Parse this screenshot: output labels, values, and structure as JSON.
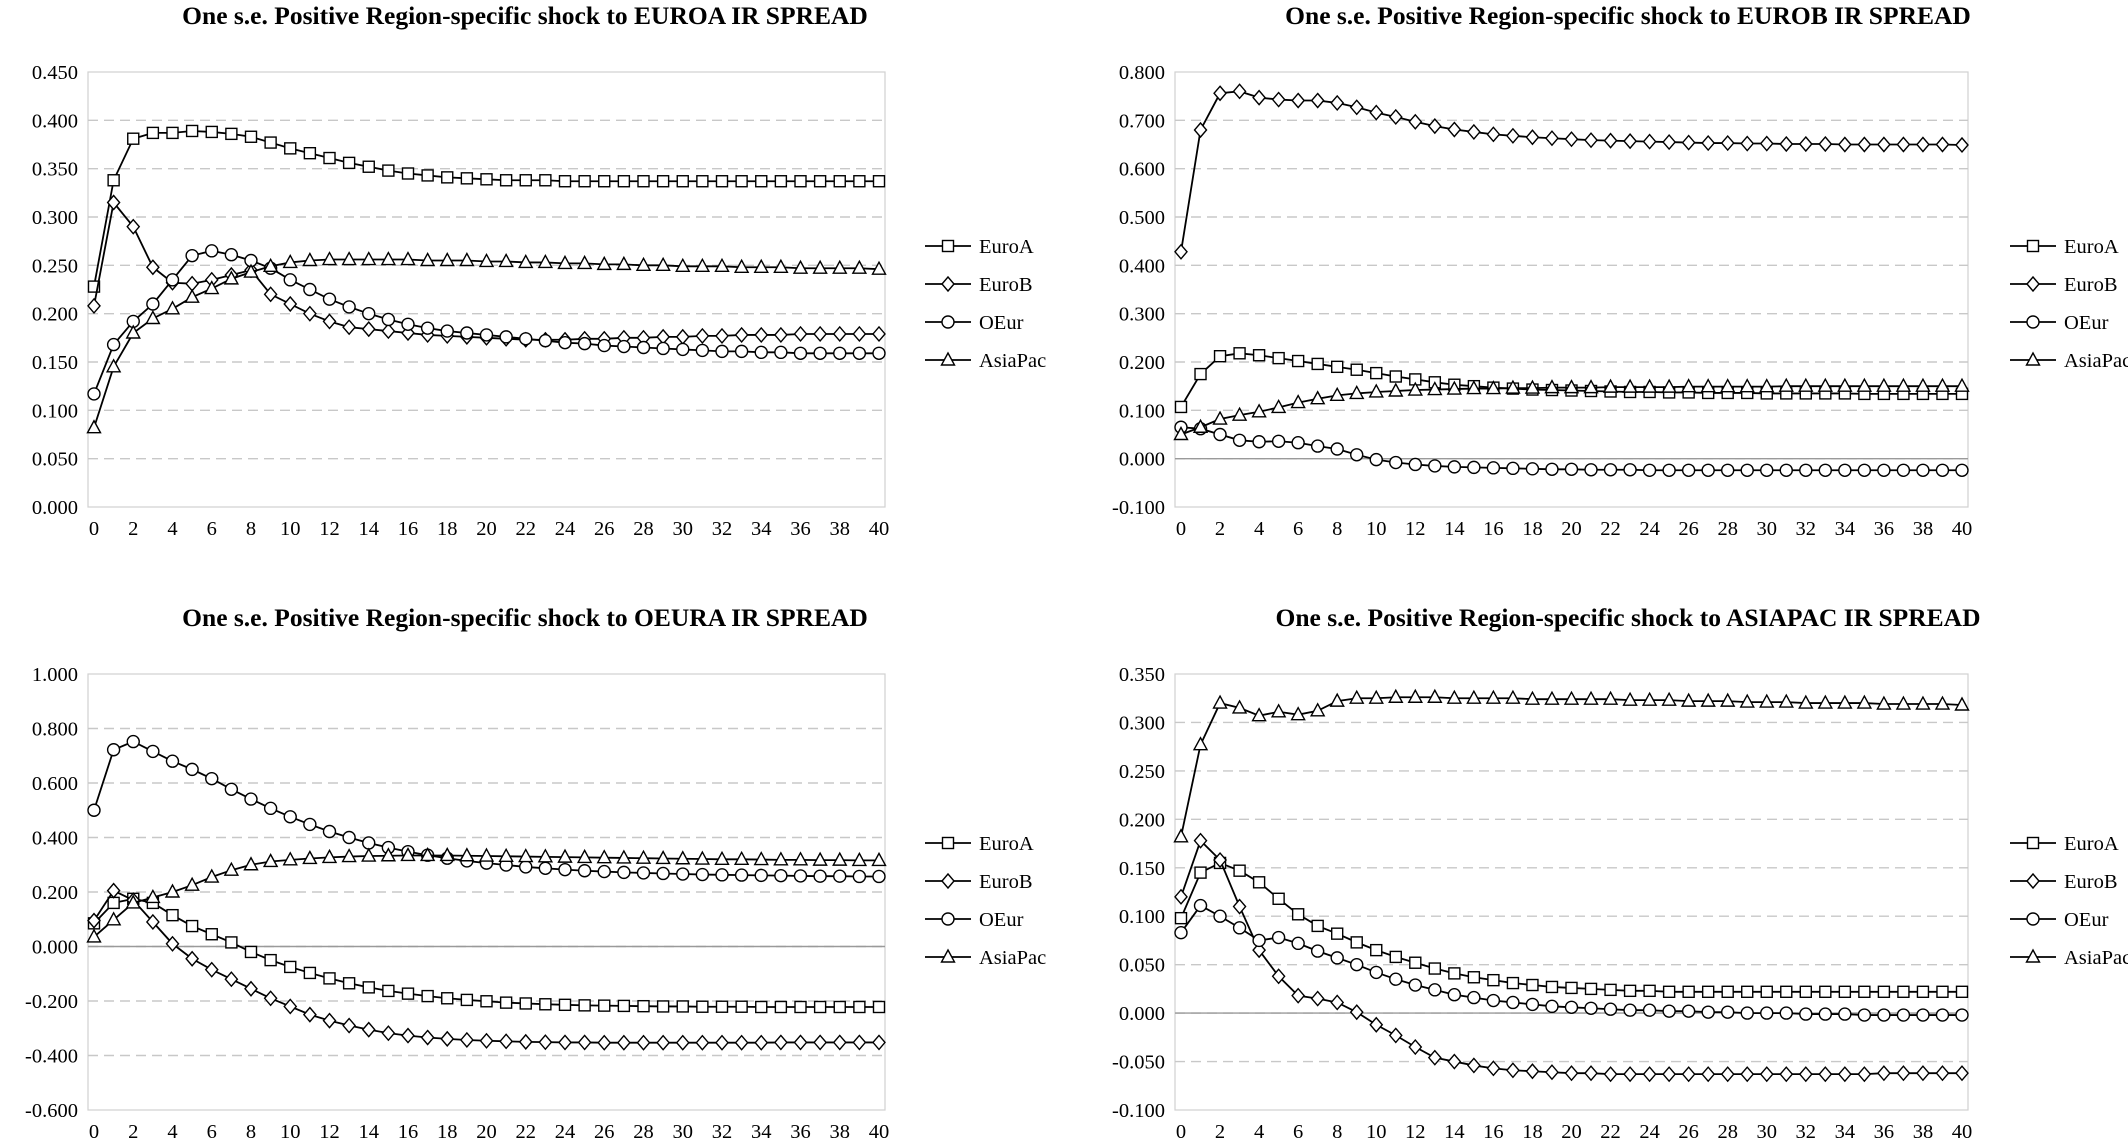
{
  "chart_data": [
    {
      "type": "line",
      "title": "One s.e. Positive Region-specific shock to EUROA IR SPREAD",
      "ylim": [
        0,
        0.45
      ],
      "ystep": 0.05,
      "ydecimals": 3,
      "xlim": [
        0,
        40
      ],
      "xtick_labels": [
        "0",
        "2",
        "4",
        "6",
        "8",
        "10",
        "12",
        "14",
        "16",
        "18",
        "20",
        "22",
        "24",
        "26",
        "28",
        "30",
        "32",
        "34",
        "36",
        "38",
        "40"
      ],
      "grid": true,
      "legend_position": "right",
      "series": [
        {
          "name": "EuroA",
          "marker": "square",
          "values": [
            0.228,
            0.338,
            0.381,
            0.387,
            0.387,
            0.389,
            0.388,
            0.386,
            0.383,
            0.377,
            0.371,
            0.366,
            0.361,
            0.356,
            0.352,
            0.348,
            0.345,
            0.343,
            0.341,
            0.34,
            0.339,
            0.338,
            0.338,
            0.338,
            0.337,
            0.337,
            0.337,
            0.337,
            0.337,
            0.337,
            0.337,
            0.337,
            0.337,
            0.337,
            0.337,
            0.337,
            0.337,
            0.337,
            0.337,
            0.337,
            0.337
          ]
        },
        {
          "name": "EuroB",
          "marker": "diamond",
          "values": [
            0.208,
            0.315,
            0.29,
            0.248,
            0.232,
            0.231,
            0.235,
            0.24,
            0.245,
            0.22,
            0.21,
            0.2,
            0.192,
            0.186,
            0.184,
            0.182,
            0.18,
            0.178,
            0.177,
            0.176,
            0.175,
            0.174,
            0.173,
            0.173,
            0.173,
            0.174,
            0.174,
            0.175,
            0.175,
            0.176,
            0.176,
            0.177,
            0.177,
            0.178,
            0.178,
            0.178,
            0.179,
            0.179,
            0.179,
            0.179,
            0.179
          ]
        },
        {
          "name": "OEur",
          "marker": "circle",
          "values": [
            0.117,
            0.168,
            0.192,
            0.21,
            0.235,
            0.26,
            0.265,
            0.261,
            0.255,
            0.247,
            0.235,
            0.225,
            0.215,
            0.207,
            0.2,
            0.194,
            0.189,
            0.185,
            0.182,
            0.18,
            0.178,
            0.176,
            0.174,
            0.172,
            0.17,
            0.169,
            0.167,
            0.166,
            0.165,
            0.164,
            0.163,
            0.162,
            0.161,
            0.161,
            0.16,
            0.16,
            0.159,
            0.159,
            0.159,
            0.159,
            0.159
          ]
        },
        {
          "name": "AsiaPac",
          "marker": "triangle",
          "values": [
            0.082,
            0.145,
            0.18,
            0.195,
            0.205,
            0.217,
            0.226,
            0.236,
            0.243,
            0.249,
            0.253,
            0.255,
            0.256,
            0.256,
            0.256,
            0.256,
            0.256,
            0.255,
            0.255,
            0.255,
            0.254,
            0.254,
            0.253,
            0.253,
            0.252,
            0.252,
            0.251,
            0.251,
            0.25,
            0.25,
            0.249,
            0.249,
            0.249,
            0.248,
            0.248,
            0.248,
            0.247,
            0.247,
            0.247,
            0.247,
            0.246
          ]
        }
      ]
    },
    {
      "type": "line",
      "title": "One s.e. Positive Region-specific shock to EUROB IR SPREAD",
      "ylim": [
        -0.1,
        0.8
      ],
      "ystep": 0.1,
      "ydecimals": 3,
      "xlim": [
        0,
        40
      ],
      "xtick_labels": [
        "0",
        "2",
        "4",
        "6",
        "8",
        "10",
        "12",
        "14",
        "16",
        "18",
        "20",
        "22",
        "24",
        "26",
        "28",
        "30",
        "32",
        "34",
        "36",
        "38",
        "40"
      ],
      "grid": true,
      "legend_position": "right",
      "series": [
        {
          "name": "EuroA",
          "marker": "square",
          "values": [
            0.107,
            0.175,
            0.212,
            0.218,
            0.214,
            0.208,
            0.202,
            0.196,
            0.19,
            0.184,
            0.177,
            0.17,
            0.164,
            0.158,
            0.153,
            0.15,
            0.147,
            0.145,
            0.143,
            0.142,
            0.141,
            0.14,
            0.139,
            0.138,
            0.138,
            0.137,
            0.137,
            0.136,
            0.136,
            0.136,
            0.135,
            0.135,
            0.135,
            0.135,
            0.135,
            0.134,
            0.134,
            0.134,
            0.134,
            0.134,
            0.134
          ]
        },
        {
          "name": "EuroB",
          "marker": "diamond",
          "values": [
            0.428,
            0.68,
            0.756,
            0.76,
            0.747,
            0.743,
            0.741,
            0.741,
            0.736,
            0.727,
            0.716,
            0.707,
            0.697,
            0.688,
            0.681,
            0.676,
            0.671,
            0.668,
            0.665,
            0.663,
            0.661,
            0.659,
            0.658,
            0.657,
            0.656,
            0.655,
            0.654,
            0.653,
            0.653,
            0.652,
            0.652,
            0.651,
            0.651,
            0.651,
            0.65,
            0.65,
            0.65,
            0.65,
            0.65,
            0.65,
            0.649
          ]
        },
        {
          "name": "OEur",
          "marker": "circle",
          "values": [
            0.065,
            0.062,
            0.05,
            0.038,
            0.035,
            0.036,
            0.033,
            0.026,
            0.02,
            0.008,
            -0.002,
            -0.008,
            -0.012,
            -0.015,
            -0.017,
            -0.018,
            -0.019,
            -0.02,
            -0.021,
            -0.022,
            -0.022,
            -0.023,
            -0.023,
            -0.023,
            -0.024,
            -0.024,
            -0.024,
            -0.024,
            -0.024,
            -0.024,
            -0.024,
            -0.024,
            -0.024,
            -0.024,
            -0.024,
            -0.024,
            -0.024,
            -0.024,
            -0.024,
            -0.024,
            -0.024
          ]
        },
        {
          "name": "AsiaPac",
          "marker": "triangle",
          "values": [
            0.05,
            0.065,
            0.082,
            0.09,
            0.097,
            0.106,
            0.116,
            0.124,
            0.131,
            0.135,
            0.138,
            0.14,
            0.142,
            0.143,
            0.144,
            0.145,
            0.145,
            0.146,
            0.146,
            0.147,
            0.147,
            0.147,
            0.148,
            0.148,
            0.148,
            0.148,
            0.149,
            0.149,
            0.149,
            0.149,
            0.149,
            0.15,
            0.15,
            0.15,
            0.15,
            0.15,
            0.15,
            0.15,
            0.15,
            0.15,
            0.15
          ]
        }
      ]
    },
    {
      "type": "line",
      "title": "One s.e. Positive Region-specific shock to OEURA IR SPREAD",
      "ylim": [
        -0.6,
        1.0
      ],
      "ystep": 0.2,
      "ydecimals": 3,
      "xlim": [
        0,
        40
      ],
      "xtick_labels": [
        "0",
        "2",
        "4",
        "6",
        "8",
        "10",
        "12",
        "14",
        "16",
        "18",
        "20",
        "22",
        "24",
        "26",
        "28",
        "30",
        "32",
        "34",
        "36",
        "38",
        "40"
      ],
      "grid": true,
      "legend_position": "right",
      "series": [
        {
          "name": "EuroA",
          "marker": "square",
          "values": [
            0.085,
            0.16,
            0.175,
            0.16,
            0.115,
            0.075,
            0.045,
            0.015,
            -0.02,
            -0.05,
            -0.075,
            -0.097,
            -0.117,
            -0.135,
            -0.15,
            -0.163,
            -0.173,
            -0.182,
            -0.19,
            -0.196,
            -0.201,
            -0.206,
            -0.209,
            -0.212,
            -0.214,
            -0.216,
            -0.217,
            -0.218,
            -0.219,
            -0.22,
            -0.22,
            -0.221,
            -0.221,
            -0.221,
            -0.222,
            -0.222,
            -0.222,
            -0.222,
            -0.222,
            -0.222,
            -0.222
          ]
        },
        {
          "name": "EuroB",
          "marker": "diamond",
          "values": [
            0.095,
            0.205,
            0.17,
            0.09,
            0.01,
            -0.045,
            -0.085,
            -0.12,
            -0.155,
            -0.19,
            -0.22,
            -0.25,
            -0.272,
            -0.29,
            -0.305,
            -0.318,
            -0.327,
            -0.334,
            -0.339,
            -0.343,
            -0.346,
            -0.348,
            -0.35,
            -0.351,
            -0.352,
            -0.352,
            -0.353,
            -0.353,
            -0.353,
            -0.353,
            -0.353,
            -0.353,
            -0.353,
            -0.353,
            -0.353,
            -0.352,
            -0.352,
            -0.352,
            -0.352,
            -0.352,
            -0.352
          ]
        },
        {
          "name": "OEur",
          "marker": "circle",
          "values": [
            0.5,
            0.722,
            0.752,
            0.716,
            0.68,
            0.65,
            0.616,
            0.577,
            0.541,
            0.507,
            0.476,
            0.448,
            0.422,
            0.4,
            0.38,
            0.363,
            0.348,
            0.335,
            0.324,
            0.314,
            0.306,
            0.299,
            0.292,
            0.287,
            0.282,
            0.278,
            0.275,
            0.272,
            0.27,
            0.268,
            0.266,
            0.264,
            0.263,
            0.262,
            0.261,
            0.26,
            0.259,
            0.258,
            0.258,
            0.257,
            0.257
          ]
        },
        {
          "name": "AsiaPac",
          "marker": "triangle",
          "values": [
            0.035,
            0.098,
            0.16,
            0.18,
            0.2,
            0.225,
            0.255,
            0.28,
            0.3,
            0.312,
            0.318,
            0.323,
            0.327,
            0.33,
            0.332,
            0.333,
            0.334,
            0.334,
            0.334,
            0.333,
            0.332,
            0.331,
            0.33,
            0.329,
            0.328,
            0.327,
            0.326,
            0.325,
            0.324,
            0.323,
            0.322,
            0.321,
            0.32,
            0.32,
            0.319,
            0.318,
            0.318,
            0.317,
            0.317,
            0.316,
            0.316
          ]
        }
      ]
    },
    {
      "type": "line",
      "title": "One s.e. Positive Region-specific shock to ASIAPAC IR SPREAD",
      "ylim": [
        -0.1,
        0.35
      ],
      "ystep": 0.05,
      "ydecimals": 3,
      "xlim": [
        0,
        40
      ],
      "xtick_labels": [
        "0",
        "2",
        "4",
        "6",
        "8",
        "10",
        "12",
        "14",
        "16",
        "18",
        "20",
        "22",
        "24",
        "26",
        "28",
        "30",
        "32",
        "34",
        "36",
        "38",
        "40"
      ],
      "grid": true,
      "legend_position": "right",
      "series": [
        {
          "name": "EuroA",
          "marker": "square",
          "values": [
            0.098,
            0.145,
            0.155,
            0.147,
            0.135,
            0.118,
            0.102,
            0.09,
            0.082,
            0.073,
            0.065,
            0.058,
            0.052,
            0.046,
            0.041,
            0.037,
            0.034,
            0.031,
            0.029,
            0.027,
            0.026,
            0.025,
            0.024,
            0.023,
            0.023,
            0.022,
            0.022,
            0.022,
            0.022,
            0.022,
            0.022,
            0.022,
            0.022,
            0.022,
            0.022,
            0.022,
            0.022,
            0.022,
            0.022,
            0.022,
            0.022
          ]
        },
        {
          "name": "EuroB",
          "marker": "diamond",
          "values": [
            0.12,
            0.178,
            0.158,
            0.11,
            0.065,
            0.038,
            0.018,
            0.015,
            0.011,
            0.001,
            -0.012,
            -0.023,
            -0.035,
            -0.046,
            -0.05,
            -0.054,
            -0.057,
            -0.059,
            -0.06,
            -0.061,
            -0.062,
            -0.062,
            -0.063,
            -0.063,
            -0.063,
            -0.063,
            -0.063,
            -0.063,
            -0.063,
            -0.063,
            -0.063,
            -0.063,
            -0.063,
            -0.063,
            -0.063,
            -0.063,
            -0.062,
            -0.062,
            -0.062,
            -0.062,
            -0.062
          ]
        },
        {
          "name": "OEur",
          "marker": "circle",
          "values": [
            0.083,
            0.111,
            0.1,
            0.088,
            0.075,
            0.078,
            0.072,
            0.064,
            0.057,
            0.05,
            0.042,
            0.035,
            0.029,
            0.024,
            0.019,
            0.016,
            0.013,
            0.011,
            0.009,
            0.007,
            0.006,
            0.005,
            0.004,
            0.003,
            0.003,
            0.002,
            0.002,
            0.001,
            0.001,
            0.0,
            0.0,
            0.0,
            -0.001,
            -0.001,
            -0.001,
            -0.002,
            -0.002,
            -0.002,
            -0.002,
            -0.002,
            -0.002
          ]
        },
        {
          "name": "AsiaPac",
          "marker": "triangle",
          "values": [
            0.182,
            0.277,
            0.32,
            0.315,
            0.307,
            0.311,
            0.308,
            0.312,
            0.322,
            0.325,
            0.325,
            0.326,
            0.326,
            0.326,
            0.325,
            0.325,
            0.325,
            0.325,
            0.324,
            0.324,
            0.324,
            0.324,
            0.324,
            0.323,
            0.323,
            0.323,
            0.322,
            0.322,
            0.322,
            0.321,
            0.321,
            0.321,
            0.32,
            0.32,
            0.32,
            0.32,
            0.319,
            0.319,
            0.319,
            0.319,
            0.318
          ]
        }
      ]
    }
  ]
}
